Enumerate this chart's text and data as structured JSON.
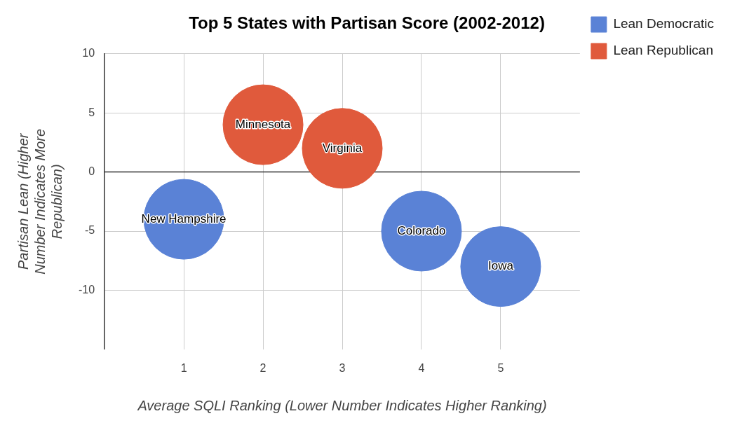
{
  "chart_data": {
    "type": "bubble",
    "title": "Top 5 States with Partisan Score (2002-2012)",
    "xlabel": "Average SQLI Ranking (Lower Number Indicates Higher Ranking)",
    "ylabel": "Partisan Lean (Higher Number Indicates More Republican)",
    "series": [
      {
        "name": "Lean Democratic",
        "color": "#5a82d6",
        "x": [
          1,
          4,
          5
        ],
        "values": [
          -4,
          -5,
          -8
        ],
        "sizes": [
          1,
          1,
          1
        ],
        "value_labels": [
          "New Hampshire",
          "Colorado",
          "Iowa"
        ]
      },
      {
        "name": "Lean Republican",
        "color": "#e05a3c",
        "x": [
          2,
          3
        ],
        "values": [
          4,
          2
        ],
        "sizes": [
          1,
          1
        ],
        "value_labels": [
          "Minnesota",
          "Virginia"
        ]
      }
    ],
    "xlim": [
      0,
      6
    ],
    "xticks": [
      1,
      2,
      3,
      4,
      5
    ],
    "ylim": [
      -15,
      10
    ],
    "yticks": [
      10,
      5,
      0,
      -5,
      -10
    ],
    "grid": true,
    "legend": "top right",
    "ref_lines": [
      {
        "axis": "y",
        "value": 0,
        "color": "#333333"
      }
    ]
  }
}
